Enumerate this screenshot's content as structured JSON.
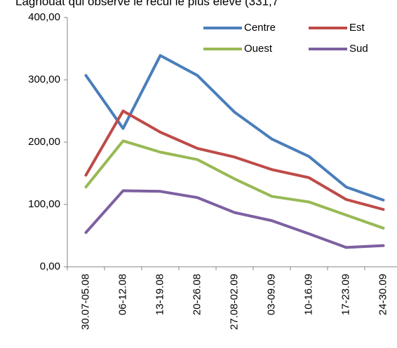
{
  "chart_data": {
    "type": "line",
    "title": "Laghouat qui observe le recul le plus élevé (331,7",
    "categories": [
      "30.07-05.08",
      "06-12.08",
      "13-19.08",
      "20-26.08",
      "27.08-02.09",
      "03-09.09",
      "10-16.09",
      "17-23.09",
      "24-30.09"
    ],
    "series": [
      {
        "name": "Centre",
        "color": "#4a7ebb",
        "values": [
          307,
          222,
          339,
          307,
          248,
          205,
          177,
          128,
          107
        ]
      },
      {
        "name": "Est",
        "color": "#be4b48",
        "values": [
          147,
          250,
          216,
          190,
          176,
          156,
          143,
          108,
          92
        ]
      },
      {
        "name": "Ouest",
        "color": "#98b954",
        "values": [
          128,
          202,
          184,
          172,
          141,
          113,
          104,
          83,
          62
        ]
      },
      {
        "name": "Sud",
        "color": "#7d60a0",
        "values": [
          55,
          122,
          121,
          111,
          87,
          74,
          53,
          31,
          34
        ]
      }
    ],
    "ylim": [
      0,
      400
    ],
    "yticks": [
      {
        "value": 0,
        "label": "0,00"
      },
      {
        "value": 100,
        "label": "100,00"
      },
      {
        "value": 200,
        "label": "200,00"
      },
      {
        "value": 300,
        "label": "300,00"
      },
      {
        "value": 400,
        "label": "400,00"
      }
    ],
    "grid": false,
    "legend": "top-right"
  }
}
